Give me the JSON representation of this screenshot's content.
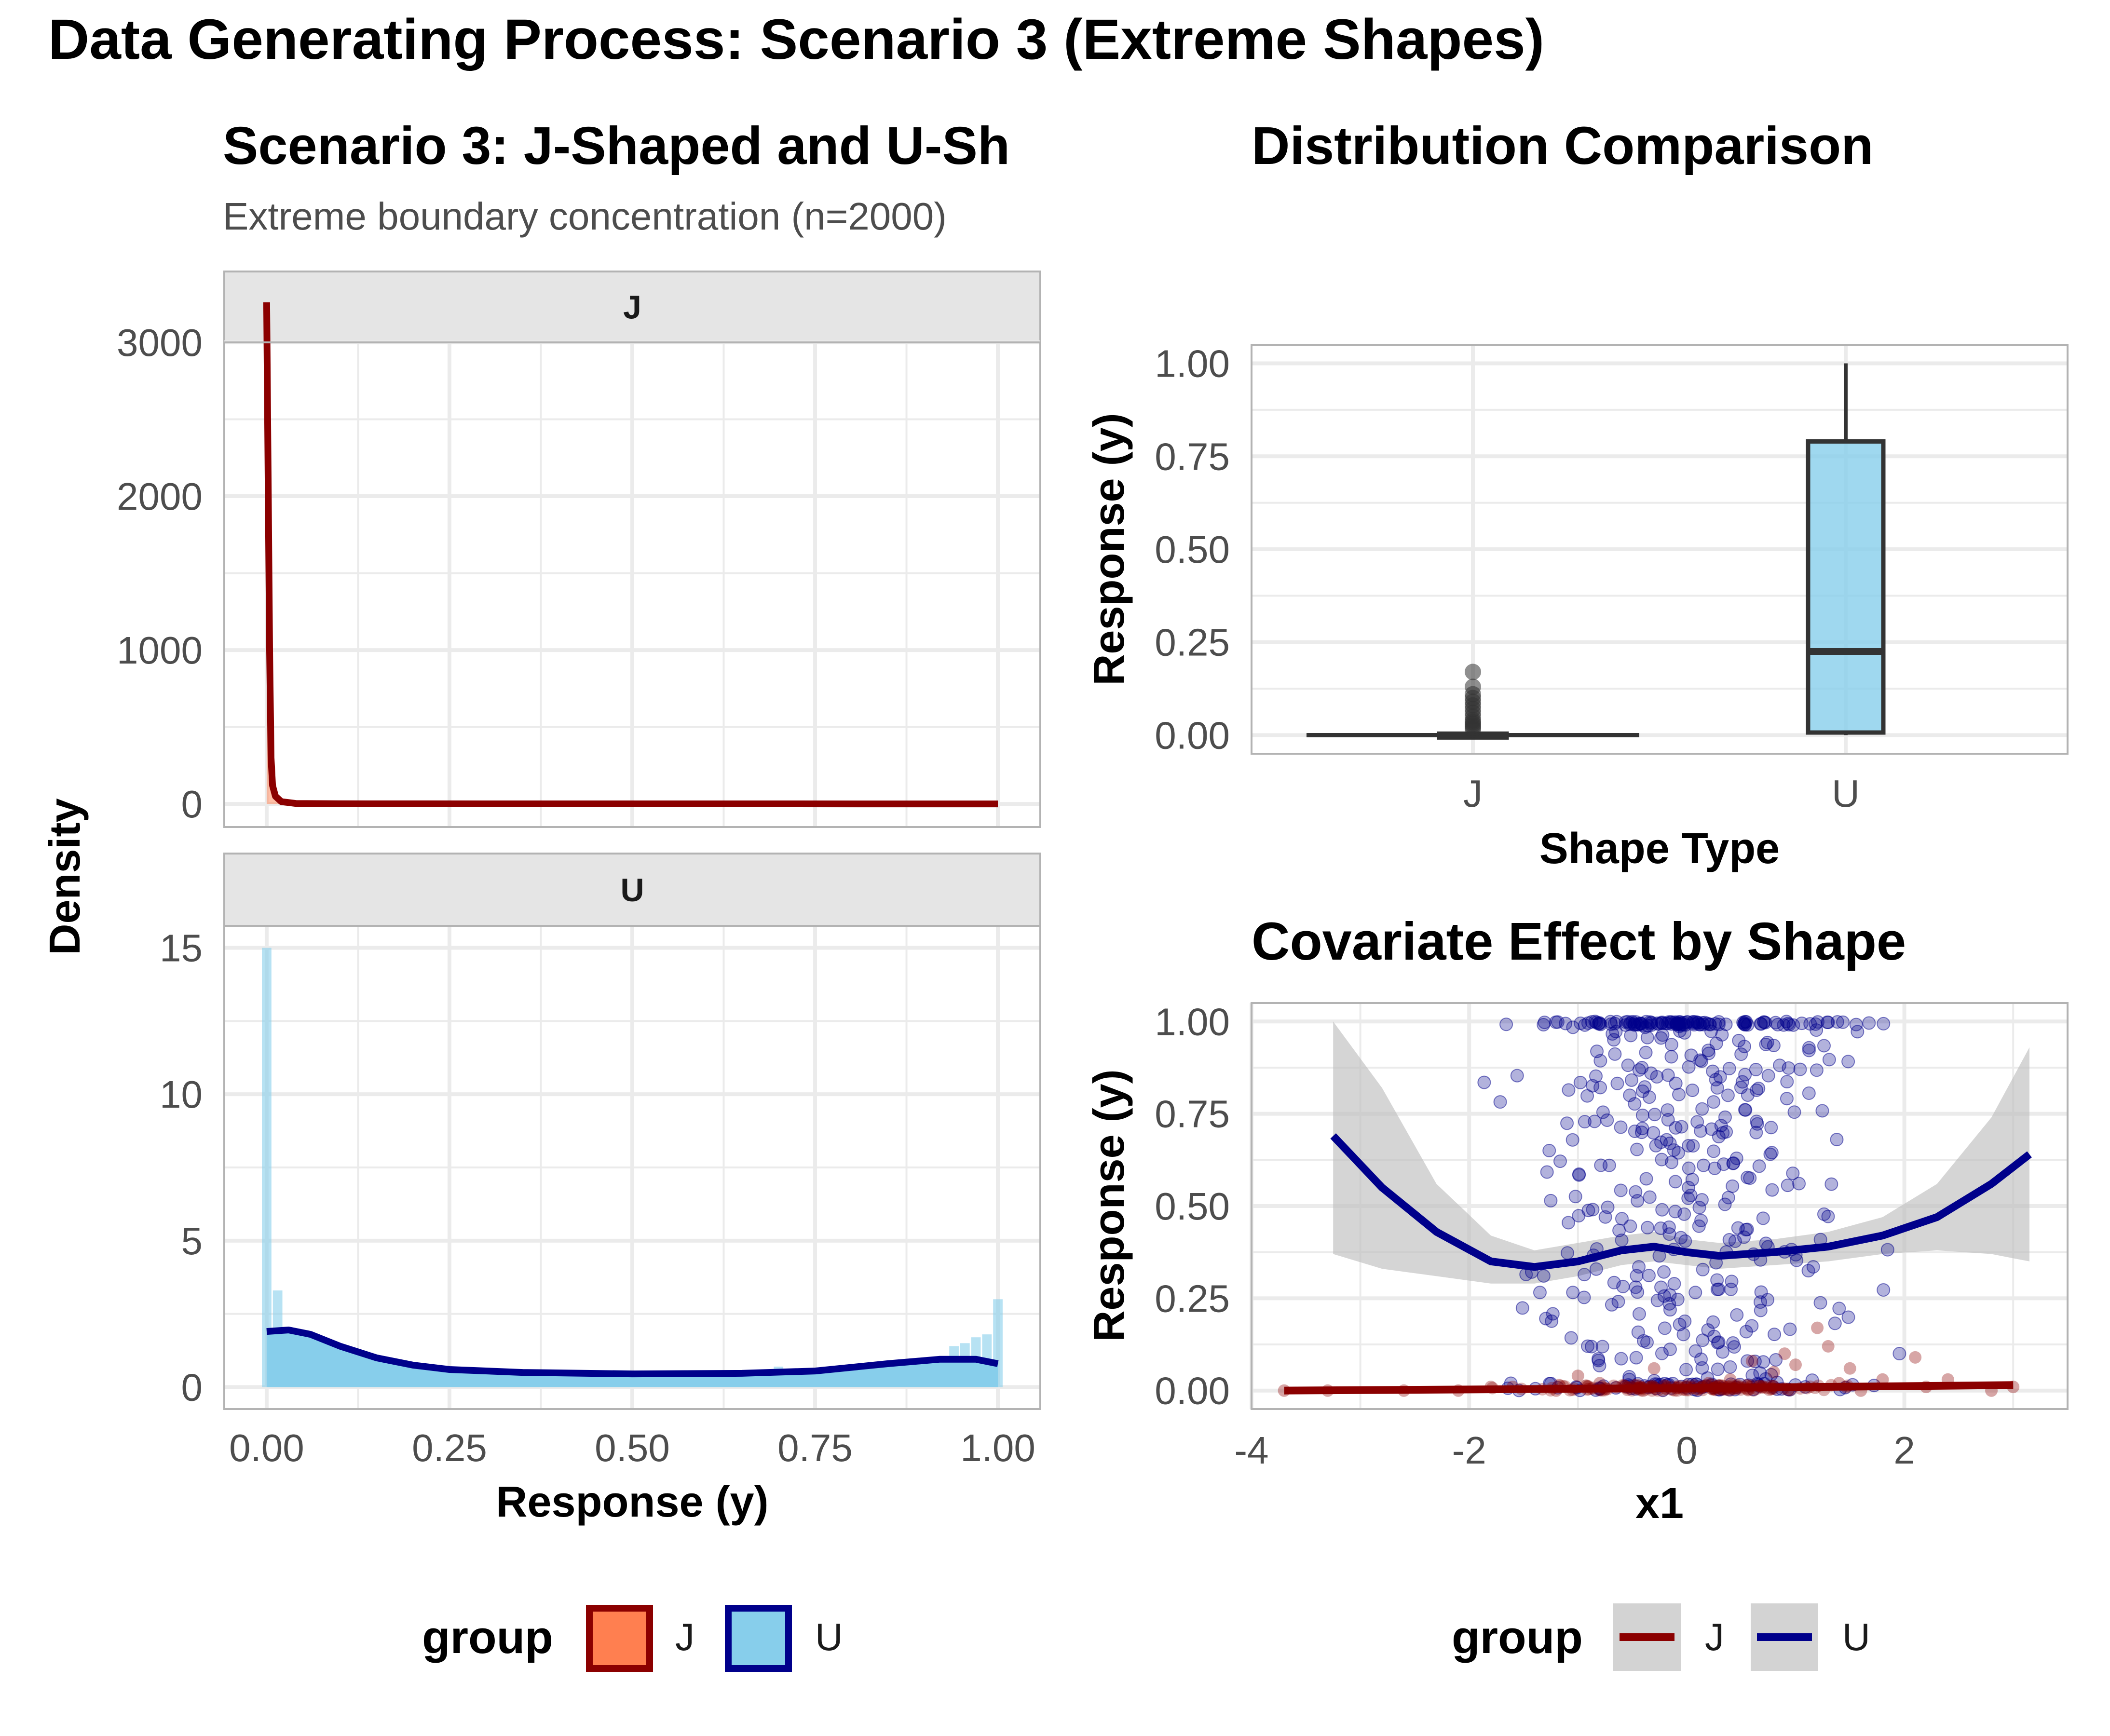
{
  "figure": {
    "title": "Data Generating Process: Scenario 3 (Extreme Shapes)"
  },
  "colors": {
    "J_fill": "#FF7F50",
    "J_line": "#8B0000",
    "U_fill": "#87CEEB",
    "U_line": "#00008B",
    "box_stroke": "#333333",
    "ribbon": "#BEBEBE",
    "strip_bg": "#E5E5E5",
    "grid": "#EBEBEB",
    "panel_border": "#B3B3B3"
  },
  "chart_data": [
    {
      "id": "density",
      "type": "area",
      "title": "Scenario 3: J-Shaped and U-Sh",
      "subtitle": "Extreme boundary concentration (n=2000)",
      "xlabel": "Response (y)",
      "ylabel": "Density",
      "xlim": [
        -0.058,
        1.058
      ],
      "x_ticks": [
        "0.00",
        "0.25",
        "0.50",
        "0.75",
        "1.00"
      ],
      "x_tick_values": [
        0,
        0.25,
        0.5,
        0.75,
        1.0
      ],
      "facets": [
        {
          "label": "J",
          "ylim": [
            -150,
            3000
          ],
          "y_ticks": [
            "0",
            "1000",
            "2000",
            "3000"
          ],
          "y_tick_values": [
            0,
            1000,
            2000,
            3000
          ],
          "density_curve": [
            [
              0.0,
              3260
            ],
            [
              0.004,
              1000
            ],
            [
              0.006,
              300
            ],
            [
              0.008,
              120
            ],
            [
              0.012,
              50
            ],
            [
              0.02,
              15
            ],
            [
              0.04,
              3
            ],
            [
              0.1,
              1
            ],
            [
              0.3,
              0.3
            ],
            [
              1.0,
              0
            ]
          ]
        },
        {
          "label": "U",
          "ylim": [
            -0.75,
            15.75
          ],
          "y_ticks": [
            "0",
            "5",
            "10",
            "15"
          ],
          "y_tick_values": [
            0,
            5,
            10,
            15
          ],
          "histogram": [
            {
              "x": 0.0,
              "y": 15.0
            },
            {
              "x": 0.015,
              "y": 3.3
            },
            {
              "x": 0.03,
              "y": 1.9
            },
            {
              "x": 0.045,
              "y": 1.5
            },
            {
              "x": 0.06,
              "y": 1.3
            },
            {
              "x": 0.7,
              "y": 0.7
            },
            {
              "x": 0.94,
              "y": 1.4
            },
            {
              "x": 0.955,
              "y": 1.5
            },
            {
              "x": 0.97,
              "y": 1.7
            },
            {
              "x": 0.985,
              "y": 1.8
            },
            {
              "x": 1.0,
              "y": 3.0
            }
          ],
          "density_curve": [
            [
              0.0,
              1.9
            ],
            [
              0.03,
              1.95
            ],
            [
              0.06,
              1.8
            ],
            [
              0.1,
              1.4
            ],
            [
              0.15,
              1.0
            ],
            [
              0.2,
              0.75
            ],
            [
              0.25,
              0.6
            ],
            [
              0.35,
              0.5
            ],
            [
              0.5,
              0.45
            ],
            [
              0.65,
              0.47
            ],
            [
              0.75,
              0.55
            ],
            [
              0.85,
              0.8
            ],
            [
              0.92,
              0.95
            ],
            [
              0.97,
              0.95
            ],
            [
              1.0,
              0.8
            ]
          ]
        }
      ],
      "legend": {
        "title": "group",
        "items": [
          "J",
          "U"
        ]
      }
    },
    {
      "id": "boxplot",
      "type": "box",
      "title": "Distribution Comparison",
      "xlabel": "Shape Type",
      "ylabel": "Response (y)",
      "categories": [
        "J",
        "U"
      ],
      "ylim": [
        -0.05,
        1.05
      ],
      "y_ticks": [
        "0.00",
        "0.25",
        "0.50",
        "0.75",
        "1.00"
      ],
      "y_tick_values": [
        0,
        0.25,
        0.5,
        0.75,
        1.0
      ],
      "boxes": [
        {
          "category": "J",
          "min": 0.0,
          "q1": 0.0,
          "median": 0.0,
          "q3": 0.004,
          "max": 0.01,
          "outliers": [
            0.17,
            0.13,
            0.11,
            0.1,
            0.09,
            0.08,
            0.07,
            0.06,
            0.05,
            0.04,
            0.035,
            0.03,
            0.025,
            0.02,
            0.015
          ]
        },
        {
          "category": "U",
          "min": 0.0,
          "q1": 0.007,
          "median": 0.225,
          "q3": 0.79,
          "max": 1.0,
          "outliers": []
        }
      ]
    },
    {
      "id": "covariate",
      "type": "scatter",
      "title": "Covariate Effect by Shape",
      "xlabel": "x1",
      "ylabel": "Response (y)",
      "xlim": [
        -4,
        3.5
      ],
      "ylim": [
        -0.05,
        1.05
      ],
      "x_ticks": [
        "-4",
        "-2",
        "0",
        "2"
      ],
      "x_tick_values": [
        -4,
        -2,
        0,
        2
      ],
      "y_ticks": [
        "0.00",
        "0.25",
        "0.50",
        "0.75",
        "1.00"
      ],
      "y_tick_values": [
        0,
        0.25,
        0.5,
        0.75,
        1.0
      ],
      "series": [
        {
          "name": "J",
          "points": [
            [
              -3.7,
              0.0
            ],
            [
              -3.3,
              0.0
            ],
            [
              -2.6,
              0.0
            ],
            [
              -2.1,
              0.0
            ],
            [
              -1.6,
              0.01
            ],
            [
              -1.2,
              0.0
            ],
            [
              -0.8,
              0.02
            ],
            [
              -0.4,
              0.0
            ],
            [
              0.0,
              0.01
            ],
            [
              0.4,
              0.03
            ],
            [
              0.8,
              0.05
            ],
            [
              1.0,
              0.07
            ],
            [
              1.2,
              0.17
            ],
            [
              1.3,
              0.12
            ],
            [
              1.4,
              0.02
            ],
            [
              1.6,
              0.0
            ],
            [
              1.8,
              0.03
            ],
            [
              2.1,
              0.09
            ],
            [
              2.2,
              0.01
            ],
            [
              2.4,
              0.03
            ],
            [
              2.8,
              0.0
            ],
            [
              3.0,
              0.01
            ],
            [
              -0.3,
              0.06
            ],
            [
              0.6,
              0.08
            ],
            [
              0.9,
              0.1
            ],
            [
              -1.0,
              0.04
            ],
            [
              1.5,
              0.06
            ],
            [
              0.2,
              0.02
            ],
            [
              -1.8,
              0.01
            ],
            [
              0.7,
              0.01
            ]
          ],
          "smooth": [
            [
              -3.7,
              0.0
            ],
            [
              -2.0,
              0.003
            ],
            [
              0.0,
              0.007
            ],
            [
              2.0,
              0.012
            ],
            [
              3.0,
              0.015
            ]
          ]
        },
        {
          "name": "U",
          "smooth": [
            [
              -3.25,
              0.69
            ],
            [
              -2.8,
              0.55
            ],
            [
              -2.3,
              0.43
            ],
            [
              -1.8,
              0.35
            ],
            [
              -1.4,
              0.335
            ],
            [
              -1.0,
              0.35
            ],
            [
              -0.6,
              0.38
            ],
            [
              -0.3,
              0.39
            ],
            [
              0.0,
              0.375
            ],
            [
              0.3,
              0.365
            ],
            [
              0.8,
              0.375
            ],
            [
              1.3,
              0.39
            ],
            [
              1.8,
              0.42
            ],
            [
              2.3,
              0.47
            ],
            [
              2.8,
              0.56
            ],
            [
              3.15,
              0.64
            ]
          ],
          "ribbon_upper": [
            [
              -3.25,
              1.0
            ],
            [
              -2.8,
              0.82
            ],
            [
              -2.3,
              0.56
            ],
            [
              -1.8,
              0.42
            ],
            [
              -1.4,
              0.38
            ],
            [
              -1.0,
              0.4
            ],
            [
              -0.6,
              0.42
            ],
            [
              -0.3,
              0.43
            ],
            [
              0.0,
              0.41
            ],
            [
              0.3,
              0.4
            ],
            [
              0.8,
              0.41
            ],
            [
              1.3,
              0.43
            ],
            [
              1.8,
              0.47
            ],
            [
              2.3,
              0.56
            ],
            [
              2.8,
              0.74
            ],
            [
              3.15,
              0.93
            ]
          ],
          "ribbon_lower": [
            [
              -3.25,
              0.37
            ],
            [
              -2.8,
              0.33
            ],
            [
              -2.3,
              0.31
            ],
            [
              -1.8,
              0.29
            ],
            [
              -1.4,
              0.29
            ],
            [
              -1.0,
              0.31
            ],
            [
              -0.6,
              0.34
            ],
            [
              -0.3,
              0.35
            ],
            [
              0.0,
              0.34
            ],
            [
              0.3,
              0.33
            ],
            [
              0.8,
              0.34
            ],
            [
              1.3,
              0.35
            ],
            [
              1.8,
              0.37
            ],
            [
              2.3,
              0.38
            ],
            [
              2.8,
              0.37
            ],
            [
              3.15,
              0.35
            ]
          ]
        }
      ],
      "legend": {
        "title": "group",
        "items": [
          "J",
          "U"
        ]
      }
    }
  ]
}
